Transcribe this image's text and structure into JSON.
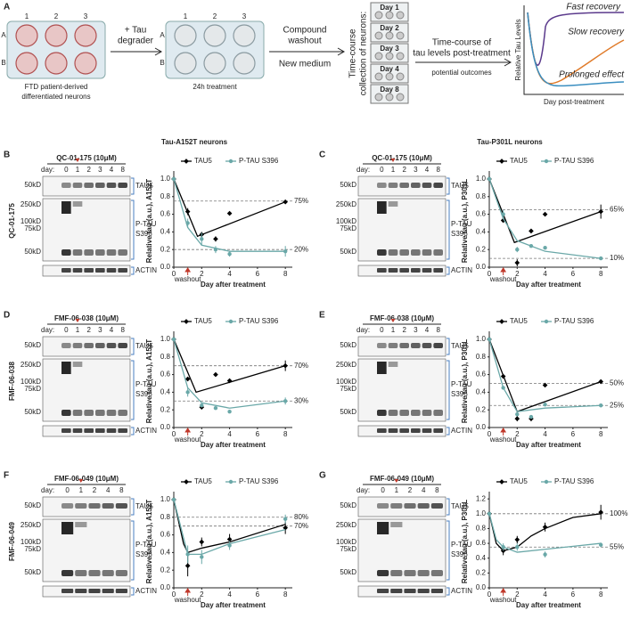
{
  "figure_a": {
    "panel": "A",
    "plate_cols": [
      "1",
      "2",
      "3"
    ],
    "plate_rows": [
      "A",
      "B"
    ],
    "plate1_caption": [
      "FTD patient-derived",
      "differentiated neurons"
    ],
    "step1": [
      "+ Tau",
      "degrader"
    ],
    "plate2_caption": "24h treatment",
    "step2": [
      "Compound",
      "washout"
    ],
    "step2b": "New medium",
    "collection": [
      "Time-course",
      "collection of neurons:"
    ],
    "days": [
      "Day 1",
      "Day 2",
      "Day 3",
      "Day 4",
      "Day 8"
    ],
    "step3": [
      "Time-course of",
      "tau levels post-treatment"
    ],
    "step3b": "potential outcomes",
    "concept_ylabel": "Relative Tau Levels",
    "concept_xlabel": "Day post-treatment",
    "outcomes": [
      {
        "name": "Fast recovery",
        "color": "#5b3a8c"
      },
      {
        "name": "Slow recovery",
        "color": "#e07b2a"
      },
      {
        "name": "Prolonged effect",
        "color": "#3a8ec0"
      }
    ]
  },
  "chart_data": [
    {
      "type": "line",
      "panel": "B",
      "title": "Tau-A152T neurons",
      "row_label": "QC-01-175",
      "ylabel": "Relative tau (a.u.), A152T",
      "xlabel": "Day after treatment",
      "annotation": "washout",
      "blot": {
        "title": "QC-01-175 (10μM)",
        "day_label": "day:",
        "days": [
          "0",
          "1",
          "2",
          "3",
          "4",
          "8"
        ],
        "mw": [
          "50kD",
          "250kD",
          "100kD",
          "75kD",
          "50kD"
        ],
        "tau5": "TAU5",
        "ptau": [
          "P-TAU",
          "S396"
        ],
        "actin": "ACTIN"
      },
      "xlim": [
        0,
        8.5
      ],
      "xticks": [
        0,
        2,
        4,
        6,
        8
      ],
      "ylim": [
        0,
        1.05
      ],
      "yticks": [
        {
          "value": 0,
          "label": "0.0"
        },
        0.2,
        0.4,
        0.6,
        0.8,
        {
          "value": 1,
          "label": "1.0"
        }
      ],
      "refs": [
        {
          "value": 0.75,
          "label": "75%"
        },
        {
          "value": 0.2,
          "label": "20%"
        }
      ],
      "series": [
        {
          "name": "TAU5",
          "color": "#000000",
          "x": [
            0,
            1,
            2,
            3,
            4,
            8
          ],
          "values": [
            1.0,
            0.63,
            0.37,
            0.32,
            0.61,
            0.74
          ],
          "errors": [
            0,
            0.04,
            0.03,
            0.03,
            0,
            0
          ],
          "fit_x": [
            0,
            1.7,
            8
          ],
          "fit_values": [
            1.0,
            0.35,
            0.74
          ]
        },
        {
          "name": "P-TAU S396",
          "color": "#6aa8a8",
          "x": [
            0,
            1,
            2,
            3,
            4,
            8
          ],
          "values": [
            1.0,
            0.5,
            0.32,
            0.2,
            0.15,
            0.18
          ],
          "errors": [
            0,
            0.05,
            0.07,
            0.04,
            0.03,
            0.06
          ],
          "fit_x": [
            0,
            1,
            2,
            4,
            8
          ],
          "fit_values": [
            1.0,
            0.45,
            0.25,
            0.18,
            0.18
          ]
        }
      ]
    },
    {
      "type": "line",
      "panel": "C",
      "title": "Tau-P301L neurons",
      "row_label": "",
      "ylabel": "Relative tau (a.u.), P301L",
      "xlabel": "Day after treatment",
      "annotation": "washout",
      "blot": {
        "title": "QC-01-175 (10μM)",
        "day_label": "day:",
        "days": [
          "0",
          "1",
          "2",
          "3",
          "4",
          "8"
        ],
        "mw": [
          "50kD",
          "250kD",
          "100kD",
          "75kD",
          "50kD"
        ],
        "tau5": "TAU5",
        "ptau": [
          "P-TAU",
          "S396"
        ],
        "actin": "ACTIN"
      },
      "xlim": [
        0,
        8.5
      ],
      "xticks": [
        0,
        2,
        4,
        6,
        8
      ],
      "ylim": [
        0,
        1.05
      ],
      "yticks": [
        {
          "value": 0,
          "label": "0.0"
        },
        0.2,
        0.4,
        0.6,
        0.8,
        {
          "value": 1,
          "label": "1.0"
        }
      ],
      "refs": [
        {
          "value": 0.65,
          "label": "65%"
        },
        {
          "value": 0.1,
          "label": "10%"
        }
      ],
      "series": [
        {
          "name": "TAU5",
          "color": "#000000",
          "x": [
            0,
            1,
            2,
            3,
            4,
            8
          ],
          "values": [
            1.0,
            0.53,
            0.05,
            0.41,
            0.6,
            0.63
          ],
          "errors": [
            0,
            0,
            0.04,
            0,
            0,
            0.08
          ],
          "fit_x": [
            0,
            1.8,
            8
          ],
          "fit_values": [
            1.0,
            0.28,
            0.63
          ]
        },
        {
          "name": "P-TAU S396",
          "color": "#6aa8a8",
          "x": [
            0,
            1,
            2,
            3,
            4,
            8
          ],
          "values": [
            1.0,
            0.6,
            0.2,
            0.24,
            0.22,
            0.1
          ],
          "errors": [
            0,
            0.05,
            0.03,
            0,
            0,
            0
          ],
          "fit_x": [
            0,
            1,
            2,
            4,
            8
          ],
          "fit_values": [
            1.0,
            0.55,
            0.3,
            0.18,
            0.1
          ]
        }
      ]
    },
    {
      "type": "line",
      "panel": "D",
      "title": "",
      "row_label": "FMF-06-038",
      "ylabel": "Relative tau (a.u.), A152T",
      "xlabel": "Day after treatment",
      "annotation": "washout",
      "blot": {
        "title": "FMF-06-038 (10μM)",
        "day_label": "day:",
        "days": [
          "0",
          "1",
          "2",
          "3",
          "4",
          "8"
        ],
        "mw": [
          "50kD",
          "250kD",
          "100kD",
          "75kD",
          "50kD"
        ],
        "tau5": "TAU5",
        "ptau": [
          "P-TAU",
          "S396"
        ],
        "actin": "ACTIN"
      },
      "xlim": [
        0,
        8.5
      ],
      "xticks": [
        0,
        2,
        4,
        6,
        8
      ],
      "ylim": [
        0,
        1.05
      ],
      "yticks": [
        {
          "value": 0,
          "label": "0.0"
        },
        0.2,
        0.4,
        0.6,
        0.8,
        {
          "value": 1,
          "label": "1.0"
        }
      ],
      "refs": [
        {
          "value": 0.7,
          "label": "70%"
        },
        {
          "value": 0.3,
          "label": "30%"
        }
      ],
      "series": [
        {
          "name": "TAU5",
          "color": "#000000",
          "x": [
            0,
            1,
            2,
            3,
            4,
            8
          ],
          "values": [
            1.0,
            0.55,
            0.23,
            0.6,
            0.53,
            0.7
          ],
          "errors": [
            0,
            0,
            0.02,
            0,
            0,
            0.06
          ],
          "fit_x": [
            0,
            1.6,
            8
          ],
          "fit_values": [
            1.0,
            0.4,
            0.7
          ]
        },
        {
          "name": "P-TAU S396",
          "color": "#6aa8a8",
          "x": [
            0,
            1,
            2,
            3,
            4,
            8
          ],
          "values": [
            1.0,
            0.4,
            0.25,
            0.22,
            0.18,
            0.3
          ],
          "errors": [
            0,
            0.05,
            0.02,
            0,
            0,
            0.04
          ],
          "fit_x": [
            0,
            1,
            2,
            4,
            8
          ],
          "fit_values": [
            1.0,
            0.45,
            0.28,
            0.22,
            0.3
          ]
        }
      ]
    },
    {
      "type": "line",
      "panel": "E",
      "title": "",
      "row_label": "",
      "ylabel": "Relative tau (a.u.), P301L",
      "xlabel": "Day after treatment",
      "annotation": "washout",
      "blot": {
        "title": "FMF-06-038 (10μM)",
        "day_label": "day:",
        "days": [
          "0",
          "1",
          "2",
          "3",
          "4",
          "8"
        ],
        "mw": [
          "50kD",
          "250kD",
          "100kD",
          "75kD",
          "50kD"
        ],
        "tau5": "TAU5",
        "ptau": [
          "P-TAU",
          "S396"
        ],
        "actin": "ACTIN"
      },
      "xlim": [
        0,
        8.5
      ],
      "xticks": [
        0,
        2,
        4,
        6,
        8
      ],
      "ylim": [
        0,
        1.05
      ],
      "yticks": [
        {
          "value": 0,
          "label": "0.0"
        },
        0.2,
        0.4,
        0.6,
        0.8,
        {
          "value": 1,
          "label": "1.0"
        }
      ],
      "refs": [
        {
          "value": 0.5,
          "label": "50%"
        },
        {
          "value": 0.25,
          "label": "25%"
        }
      ],
      "series": [
        {
          "name": "TAU5",
          "color": "#000000",
          "x": [
            0,
            1,
            2,
            3,
            4,
            8
          ],
          "values": [
            1.0,
            0.58,
            0.1,
            0.1,
            0.48,
            0.52
          ],
          "errors": [
            0,
            0,
            0.03,
            0.03,
            0,
            0
          ],
          "fit_x": [
            0,
            2,
            8
          ],
          "fit_values": [
            1.0,
            0.18,
            0.52
          ]
        },
        {
          "name": "P-TAU S396",
          "color": "#6aa8a8",
          "x": [
            0,
            1,
            2,
            3,
            4,
            8
          ],
          "values": [
            1.0,
            0.45,
            0.15,
            0.12,
            0.26,
            0.25
          ],
          "errors": [
            0,
            0,
            0.02,
            0.02,
            0,
            0
          ],
          "fit_x": [
            0,
            1,
            2,
            4,
            8
          ],
          "fit_values": [
            1.0,
            0.45,
            0.18,
            0.22,
            0.25
          ]
        }
      ]
    },
    {
      "type": "line",
      "panel": "F",
      "title": "",
      "row_label": "FMF-06-049",
      "ylabel": "Relative tau (a.u.), A152T",
      "xlabel": "Day after treatment",
      "annotation": "washout",
      "blot": {
        "title": "FMF-06-049 (10μM)",
        "day_label": "day:",
        "days": [
          "0",
          "1",
          "2",
          "4",
          "8"
        ],
        "mw": [
          "50kD",
          "250kD",
          "100kD",
          "75kD",
          "50kD"
        ],
        "tau5": "TAU5",
        "ptau": [
          "P-TAU",
          "S396"
        ],
        "actin": "ACTIN"
      },
      "xlim": [
        0,
        8.5
      ],
      "xticks": [
        0,
        2,
        4,
        6,
        8
      ],
      "ylim": [
        0,
        1.05
      ],
      "yticks": [
        {
          "value": 0,
          "label": "0.0"
        },
        0.2,
        0.4,
        0.6,
        0.8,
        {
          "value": 1,
          "label": "1.0"
        }
      ],
      "refs": [
        {
          "value": 0.8,
          "label": "80%"
        },
        {
          "value": 0.7,
          "label": "70%"
        }
      ],
      "series": [
        {
          "name": "TAU5",
          "color": "#000000",
          "x": [
            0,
            1,
            2,
            4,
            8
          ],
          "values": [
            1.0,
            0.25,
            0.52,
            0.55,
            0.68
          ],
          "errors": [
            0,
            0.12,
            0.05,
            0.06,
            0.07
          ],
          "fit_x": [
            0,
            0.7,
            1,
            2,
            4,
            8
          ],
          "fit_values": [
            1.0,
            0.5,
            0.4,
            0.45,
            0.52,
            0.72
          ]
        },
        {
          "name": "P-TAU S396",
          "color": "#6aa8a8",
          "x": [
            0,
            1,
            2,
            4,
            8
          ],
          "values": [
            1.0,
            0.38,
            0.35,
            0.48,
            0.78
          ],
          "errors": [
            0,
            0.1,
            0.08,
            0.05,
            0.05
          ],
          "fit_x": [
            0,
            1,
            2,
            4,
            8
          ],
          "fit_values": [
            1.0,
            0.38,
            0.38,
            0.5,
            0.66
          ]
        }
      ]
    },
    {
      "type": "line",
      "panel": "G",
      "title": "",
      "row_label": "",
      "ylabel": "Relative tau (a.u.), P301L",
      "xlabel": "Day after treatment",
      "annotation": "washout",
      "blot": {
        "title": "FMF-06-049 (10μM)",
        "day_label": "day:",
        "days": [
          "0",
          "1",
          "2",
          "4",
          "8"
        ],
        "mw": [
          "50kD",
          "250kD",
          "100kD",
          "75kD",
          "50kD"
        ],
        "tau5": "TAU5",
        "ptau": [
          "P-TAU",
          "S396"
        ],
        "actin": "ACTIN"
      },
      "xlim": [
        0,
        8.5
      ],
      "xticks": [
        0,
        2,
        4,
        6,
        8
      ],
      "ylim": [
        0,
        1.25
      ],
      "yticks": [
        {
          "value": 0,
          "label": "0.0"
        },
        0.2,
        0.4,
        0.6,
        0.8,
        {
          "value": 1,
          "label": "1.0"
        },
        0.2,
        {
          "value": 1.2,
          "label": "1.2"
        }
      ],
      "refs": [
        {
          "value": 1.0,
          "label": "100%"
        },
        {
          "value": 0.55,
          "label": "55%"
        }
      ],
      "series": [
        {
          "name": "TAU5",
          "color": "#000000",
          "x": [
            0,
            1,
            2,
            4,
            8
          ],
          "values": [
            1.0,
            0.5,
            0.65,
            0.82,
            1.02
          ],
          "errors": [
            0,
            0.06,
            0.05,
            0.06,
            0.1
          ],
          "fit_x": [
            0,
            0.5,
            1,
            2,
            3,
            4,
            6,
            8
          ],
          "fit_values": [
            1.0,
            0.6,
            0.5,
            0.55,
            0.7,
            0.8,
            0.95,
            1.0
          ]
        },
        {
          "name": "P-TAU S396",
          "color": "#6aa8a8",
          "x": [
            0,
            1,
            2,
            4,
            8
          ],
          "values": [
            1.0,
            0.55,
            0.55,
            0.45,
            0.58
          ],
          "errors": [
            0,
            0.05,
            0.05,
            0.04,
            0.03
          ],
          "fit_x": [
            0,
            0.5,
            1,
            2,
            4,
            8
          ],
          "fit_values": [
            1.0,
            0.65,
            0.55,
            0.48,
            0.52,
            0.6
          ]
        }
      ]
    }
  ]
}
